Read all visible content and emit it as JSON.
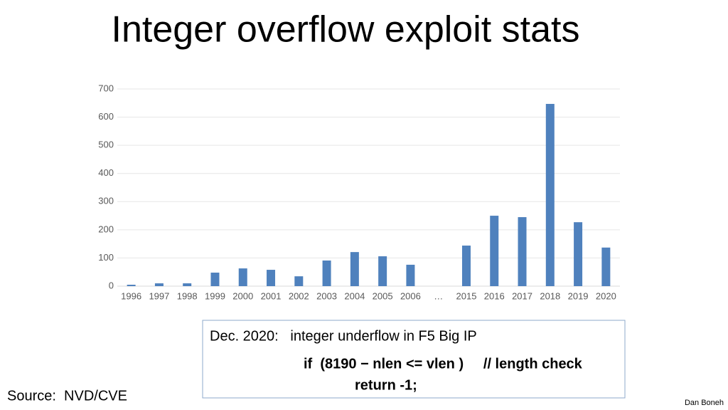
{
  "chart_data": {
    "type": "bar",
    "title": "Integer overflow exploit stats",
    "categories": [
      "1996",
      "1997",
      "1998",
      "1999",
      "2000",
      "2001",
      "2002",
      "2003",
      "2004",
      "2005",
      "2006",
      "…",
      "2015",
      "2016",
      "2017",
      "2018",
      "2019",
      "2020"
    ],
    "values": [
      5,
      10,
      10,
      48,
      63,
      58,
      35,
      91,
      121,
      106,
      76,
      null,
      144,
      250,
      245,
      647,
      227,
      137
    ],
    "color": "#4f81bd",
    "ylim": [
      0,
      700
    ],
    "yticks": [
      0,
      100,
      200,
      300,
      400,
      500,
      600,
      700
    ],
    "grid": true
  },
  "callout": {
    "heading": "Dec. 2020:   integer underflow in F5 Big IP",
    "code": [
      "if  (8190 − nlen <= vlen )     // length check",
      "return -1;"
    ]
  },
  "source": "Source:  NVD/CVE",
  "author": "Dan Boneh"
}
